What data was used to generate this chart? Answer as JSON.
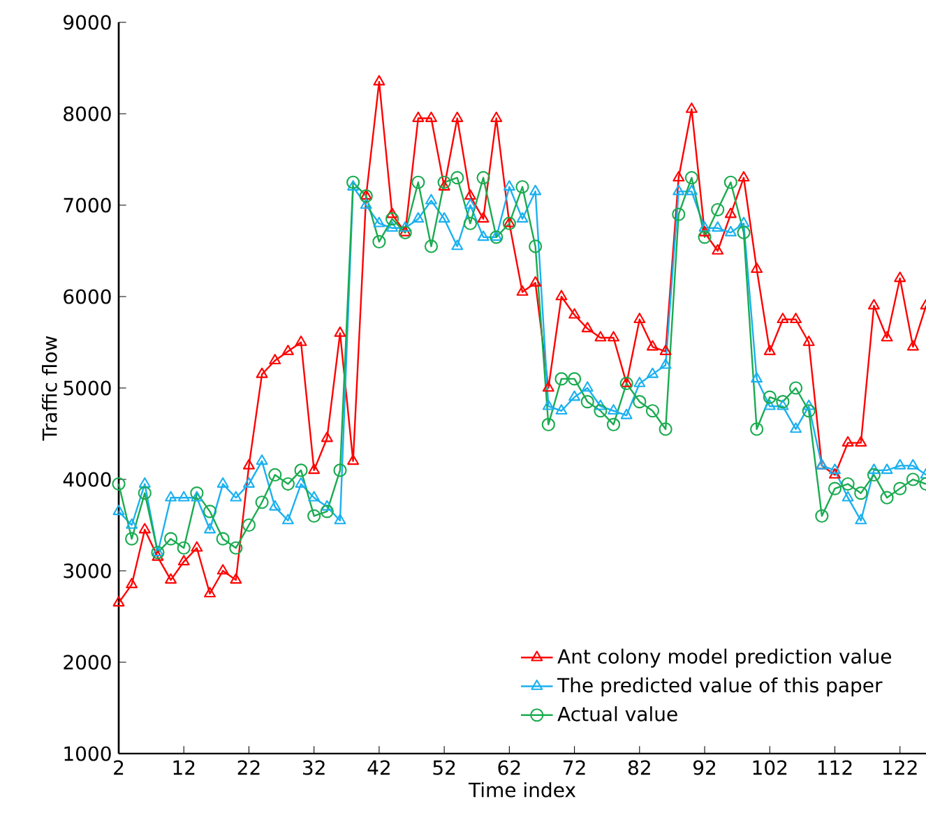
{
  "chart_data": {
    "type": "line",
    "xlabel": "Time index",
    "ylabel": "Traffic flow",
    "xlim": [
      2,
      126
    ],
    "ylim": [
      1000,
      9000
    ],
    "xticks": [
      2,
      12,
      22,
      32,
      42,
      52,
      62,
      72,
      82,
      92,
      102,
      112,
      122
    ],
    "yticks": [
      1000,
      2000,
      3000,
      4000,
      5000,
      6000,
      7000,
      8000,
      9000
    ],
    "grid": false,
    "legend": "bottom right",
    "line_style": "solid",
    "x": [
      2,
      4,
      6,
      8,
      10,
      12,
      14,
      16,
      18,
      20,
      22,
      24,
      26,
      28,
      30,
      32,
      34,
      36,
      38,
      40,
      42,
      44,
      46,
      48,
      50,
      52,
      54,
      56,
      58,
      60,
      62,
      64,
      66,
      68,
      70,
      72,
      74,
      76,
      78,
      80,
      82,
      84,
      86,
      88,
      90,
      92,
      94,
      96,
      98,
      100,
      102,
      104,
      106,
      108,
      110,
      112,
      114,
      116,
      118,
      120,
      122,
      124,
      126
    ],
    "series": [
      {
        "name": "Ant colony model prediction value",
        "color": "#ff0000",
        "marker": "triangle",
        "values": [
          2650,
          2850,
          3450,
          3150,
          2900,
          3100,
          3250,
          2750,
          3000,
          2900,
          4150,
          5150,
          5300,
          5400,
          5500,
          4100,
          4450,
          5600,
          4200,
          7100,
          8350,
          6900,
          6700,
          7950,
          7950,
          7200,
          7950,
          7100,
          6850,
          7950,
          6800,
          6050,
          6150,
          5000,
          6000,
          5800,
          5650,
          5550,
          5550,
          5050,
          5750,
          5450,
          5400,
          7300,
          8050,
          6700,
          6500,
          6900,
          7300,
          6300,
          5400,
          5750,
          5750,
          5500,
          4150,
          4050,
          4400,
          4400,
          5900,
          5550,
          6200,
          5450,
          5900
        ]
      },
      {
        "name": "The predicted value of this paper",
        "color": "#1ab0f0",
        "marker": "triangle",
        "values": [
          3650,
          3500,
          3950,
          3200,
          3800,
          3800,
          3800,
          3450,
          3950,
          3800,
          3950,
          4200,
          3700,
          3550,
          3950,
          3800,
          3700,
          3550,
          7200,
          7000,
          6800,
          6750,
          6750,
          6850,
          7050,
          6850,
          6550,
          7000,
          6650,
          6650,
          7200,
          6850,
          7150,
          4800,
          4750,
          4900,
          5000,
          4800,
          4750,
          4700,
          5050,
          5150,
          5250,
          7150,
          7150,
          6750,
          6750,
          6700,
          6800,
          5100,
          4800,
          4800,
          4550,
          4800,
          4150,
          4100,
          3800,
          3550,
          4100,
          4100,
          4150,
          4150,
          4050
        ]
      },
      {
        "name": "Actual value",
        "color": "#1aab50",
        "marker": "circle",
        "values": [
          3950,
          3350,
          3850,
          3200,
          3350,
          3250,
          3850,
          3650,
          3350,
          3250,
          3500,
          3750,
          4050,
          3950,
          4100,
          3600,
          3650,
          4100,
          7250,
          7100,
          6600,
          6850,
          6700,
          7250,
          6550,
          7250,
          7300,
          6800,
          7300,
          6650,
          6800,
          7200,
          6550,
          4600,
          5100,
          5100,
          4850,
          4750,
          4600,
          5050,
          4850,
          4750,
          4550,
          6900,
          7300,
          6650,
          6950,
          7250,
          6700,
          4550,
          4900,
          4850,
          5000,
          4750,
          3600,
          3900,
          3950,
          3850,
          4050,
          3800,
          3900,
          4000,
          3950
        ]
      }
    ]
  }
}
